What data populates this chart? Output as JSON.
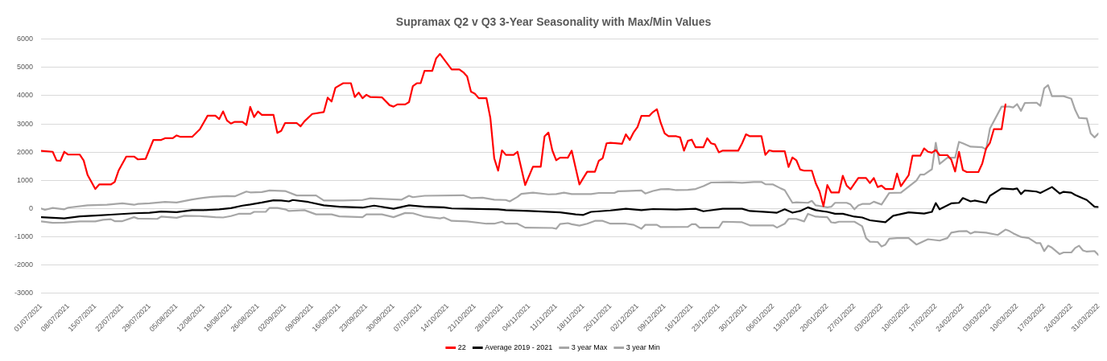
{
  "chart_data": {
    "type": "line",
    "title": "Supramax Q2 v Q3 3-Year Seasonality with Max/Min Values",
    "legend": "bottom",
    "grid": "y",
    "marker": "none",
    "line_style": "solid",
    "ylim": [
      -3000,
      6000
    ],
    "yticks": [
      -3000,
      -2000,
      -1000,
      0,
      1000,
      2000,
      3000,
      4000,
      5000,
      6000
    ],
    "xlim": [
      "2021-07-01",
      "2022-03-31"
    ],
    "xticks": [
      {
        "value": "2021-07-01",
        "label": "01/07/2021"
      },
      {
        "value": "2021-07-08",
        "label": "08/07/2021"
      },
      {
        "value": "2021-07-15",
        "label": "15/07/2021"
      },
      {
        "value": "2021-07-22",
        "label": "22/07/2021"
      },
      {
        "value": "2021-07-29",
        "label": "29/07/2021"
      },
      {
        "value": "2021-08-05",
        "label": "05/08/2021"
      },
      {
        "value": "2021-08-12",
        "label": "12/08/2021"
      },
      {
        "value": "2021-08-19",
        "label": "19/08/2021"
      },
      {
        "value": "2021-08-26",
        "label": "26/08/2021"
      },
      {
        "value": "2021-09-02",
        "label": "02/09/2021"
      },
      {
        "value": "2021-09-09",
        "label": "09/09/2021"
      },
      {
        "value": "2021-09-16",
        "label": "16/09/2021"
      },
      {
        "value": "2021-09-23",
        "label": "23/09/2021"
      },
      {
        "value": "2021-09-30",
        "label": "30/09/2021"
      },
      {
        "value": "2021-10-07",
        "label": "07/10/2021"
      },
      {
        "value": "2021-10-14",
        "label": "14/10/2021"
      },
      {
        "value": "2021-10-21",
        "label": "21/10/2021"
      },
      {
        "value": "2021-10-28",
        "label": "28/10/2021"
      },
      {
        "value": "2021-11-04",
        "label": "04/11/2021"
      },
      {
        "value": "2021-11-11",
        "label": "11/11/2021"
      },
      {
        "value": "2021-11-18",
        "label": "18/11/2021"
      },
      {
        "value": "2021-11-25",
        "label": "25/11/2021"
      },
      {
        "value": "2021-12-02",
        "label": "02/12/2021"
      },
      {
        "value": "2021-12-09",
        "label": "09/12/2021"
      },
      {
        "value": "2021-12-16",
        "label": "16/12/2021"
      },
      {
        "value": "2021-12-23",
        "label": "23/12/2021"
      },
      {
        "value": "2021-12-30",
        "label": "30/12/2021"
      },
      {
        "value": "2022-01-06",
        "label": "06/01/2022"
      },
      {
        "value": "2022-01-13",
        "label": "13/01/2022"
      },
      {
        "value": "2022-01-20",
        "label": "20/01/2022"
      },
      {
        "value": "2022-01-27",
        "label": "27/01/2022"
      },
      {
        "value": "2022-02-03",
        "label": "03/02/2022"
      },
      {
        "value": "2022-02-10",
        "label": "10/02/2022"
      },
      {
        "value": "2022-02-17",
        "label": "17/02/2022"
      },
      {
        "value": "2022-02-24",
        "label": "24/02/2022"
      },
      {
        "value": "2022-03-03",
        "label": "03/03/2022"
      },
      {
        "value": "2022-03-10",
        "label": "10/03/2022"
      },
      {
        "value": "2022-03-17",
        "label": "17/03/2022"
      },
      {
        "value": "2022-03-24",
        "label": "24/03/2022"
      },
      {
        "value": "2022-03-31",
        "label": "31/03/2022"
      }
    ],
    "series": [
      {
        "name": "22",
        "color": "#ff0000",
        "x": [
          "2021-07-01",
          "2021-07-04",
          "2021-07-05",
          "2021-07-06",
          "2021-07-07",
          "2021-07-08",
          "2021-07-11",
          "2021-07-12",
          "2021-07-13",
          "2021-07-15",
          "2021-07-16",
          "2021-07-19",
          "2021-07-20",
          "2021-07-21",
          "2021-07-23",
          "2021-07-25",
          "2021-07-26",
          "2021-07-28",
          "2021-07-30",
          "2021-08-01",
          "2021-08-02",
          "2021-08-04",
          "2021-08-05",
          "2021-08-06",
          "2021-08-09",
          "2021-08-11",
          "2021-08-13",
          "2021-08-15",
          "2021-08-16",
          "2021-08-17",
          "2021-08-18",
          "2021-08-19",
          "2021-08-20",
          "2021-08-22",
          "2021-08-23",
          "2021-08-24",
          "2021-08-25",
          "2021-08-26",
          "2021-08-27",
          "2021-08-30",
          "2021-08-31",
          "2021-09-01",
          "2021-09-02",
          "2021-09-05",
          "2021-09-06",
          "2021-09-07",
          "2021-09-09",
          "2021-09-12",
          "2021-09-13",
          "2021-09-14",
          "2021-09-15",
          "2021-09-17",
          "2021-09-19",
          "2021-09-20",
          "2021-09-21",
          "2021-09-22",
          "2021-09-23",
          "2021-09-24",
          "2021-09-27",
          "2021-09-29",
          "2021-09-30",
          "2021-10-01",
          "2021-10-03",
          "2021-10-04",
          "2021-10-05",
          "2021-10-06",
          "2021-10-07",
          "2021-10-08",
          "2021-10-10",
          "2021-10-11",
          "2021-10-12",
          "2021-10-15",
          "2021-10-17",
          "2021-10-18",
          "2021-10-19",
          "2021-10-20",
          "2021-10-21",
          "2021-10-22",
          "2021-10-24",
          "2021-10-25",
          "2021-10-26",
          "2021-10-27",
          "2021-10-28",
          "2021-10-29",
          "2021-10-31",
          "2021-11-01",
          "2021-11-03",
          "2021-11-05",
          "2021-11-07",
          "2021-11-08",
          "2021-11-09",
          "2021-11-10",
          "2021-11-11",
          "2021-11-12",
          "2021-11-14",
          "2021-11-15",
          "2021-11-16",
          "2021-11-17",
          "2021-11-18",
          "2021-11-19",
          "2021-11-21",
          "2021-11-22",
          "2021-11-23",
          "2021-11-24",
          "2021-11-25",
          "2021-11-28",
          "2021-11-29",
          "2021-11-30",
          "2021-12-01",
          "2021-12-02",
          "2021-12-03",
          "2021-12-05",
          "2021-12-06",
          "2021-12-07",
          "2021-12-08",
          "2021-12-09",
          "2021-12-10",
          "2021-12-12",
          "2021-12-13",
          "2021-12-14",
          "2021-12-15",
          "2021-12-16",
          "2021-12-17",
          "2021-12-19",
          "2021-12-20",
          "2021-12-21",
          "2021-12-22",
          "2021-12-23",
          "2021-12-24",
          "2021-12-28",
          "2021-12-29",
          "2021-12-30",
          "2021-12-31",
          "2022-01-03",
          "2022-01-04",
          "2022-01-05",
          "2022-01-06",
          "2022-01-09",
          "2022-01-10",
          "2022-01-11",
          "2022-01-12",
          "2022-01-13",
          "2022-01-14",
          "2022-01-16",
          "2022-01-17",
          "2022-01-18",
          "2022-01-19",
          "2022-01-20",
          "2022-01-21",
          "2022-01-23",
          "2022-01-24",
          "2022-01-25",
          "2022-01-26",
          "2022-01-28",
          "2022-01-30",
          "2022-01-31",
          "2022-02-01",
          "2022-02-02",
          "2022-02-03",
          "2022-02-04",
          "2022-02-06",
          "2022-02-07",
          "2022-02-08",
          "2022-02-10",
          "2022-02-11",
          "2022-02-13",
          "2022-02-14",
          "2022-02-15",
          "2022-02-16",
          "2022-02-17",
          "2022-02-18",
          "2022-02-20",
          "2022-02-21",
          "2022-02-22",
          "2022-02-23",
          "2022-02-24",
          "2022-02-25",
          "2022-02-28",
          "2022-03-01",
          "2022-03-02",
          "2022-03-03",
          "2022-03-04",
          "2022-03-06",
          "2022-03-07"
        ],
        "values": [
          2040,
          2010,
          1700,
          1690,
          2010,
          1910,
          1910,
          1700,
          1190,
          690,
          850,
          850,
          940,
          1340,
          1840,
          1840,
          1740,
          1760,
          2430,
          2430,
          2490,
          2490,
          2590,
          2540,
          2540,
          2810,
          3290,
          3290,
          3170,
          3440,
          3120,
          3010,
          3070,
          3070,
          2960,
          3600,
          3240,
          3440,
          3320,
          3320,
          2680,
          2750,
          3030,
          3030,
          2910,
          3090,
          3350,
          3420,
          3930,
          3790,
          4280,
          4440,
          4440,
          3950,
          4110,
          3910,
          4030,
          3950,
          3940,
          3660,
          3610,
          3690,
          3690,
          3770,
          4340,
          4440,
          4440,
          4880,
          4880,
          5320,
          5480,
          4930,
          4930,
          4830,
          4680,
          4140,
          4070,
          3910,
          3910,
          3210,
          1780,
          1340,
          2060,
          1900,
          1900,
          2010,
          830,
          1480,
          1480,
          2560,
          2690,
          2060,
          1710,
          1800,
          1800,
          2050,
          1450,
          850,
          1080,
          1300,
          1300,
          1690,
          1780,
          2310,
          2330,
          2290,
          2630,
          2430,
          2700,
          2890,
          3280,
          3280,
          3420,
          3520,
          3030,
          2660,
          2560,
          2560,
          2520,
          2050,
          2400,
          2440,
          2170,
          2170,
          2490,
          2310,
          2270,
          1990,
          2050,
          2050,
          2310,
          2630,
          2560,
          2560,
          1900,
          2060,
          2030,
          2030,
          1470,
          1810,
          1710,
          1380,
          1340,
          1340,
          900,
          600,
          80,
          830,
          570,
          570,
          1160,
          810,
          680,
          1080,
          1080,
          900,
          1080,
          760,
          810,
          690,
          690,
          1240,
          790,
          1180,
          1870,
          1870,
          2130,
          2010,
          1980,
          2070,
          1890,
          1890,
          1730,
          1310,
          2010,
          1360,
          1290,
          1290,
          1590,
          2130,
          2330,
          2810,
          2810,
          3690
        ]
      },
      {
        "name": "Average 2019 - 2021",
        "color": "#000000",
        "x": [
          "2021-07-01",
          "2021-07-07",
          "2021-07-11",
          "2021-07-15",
          "2021-07-19",
          "2021-07-25",
          "2021-07-29",
          "2021-08-01",
          "2021-08-05",
          "2021-08-09",
          "2021-08-12",
          "2021-08-16",
          "2021-08-19",
          "2021-08-22",
          "2021-08-24",
          "2021-08-27",
          "2021-08-30",
          "2021-09-01",
          "2021-09-03",
          "2021-09-04",
          "2021-09-08",
          "2021-09-12",
          "2021-09-16",
          "2021-09-22",
          "2021-09-25",
          "2021-09-30",
          "2021-10-04",
          "2021-10-08",
          "2021-10-13",
          "2021-10-15",
          "2021-10-19",
          "2021-10-27",
          "2021-10-29",
          "2021-11-04",
          "2021-11-12",
          "2021-11-16",
          "2021-11-18",
          "2021-11-20",
          "2021-11-25",
          "2021-11-29",
          "2021-12-03",
          "2021-12-06",
          "2021-12-12",
          "2021-12-17",
          "2021-12-19",
          "2021-12-24",
          "2021-12-29",
          "2021-12-31",
          "2022-01-05",
          "2022-01-07",
          "2022-01-09",
          "2022-01-11",
          "2022-01-13",
          "2022-01-15",
          "2022-01-17",
          "2022-01-20",
          "2022-01-22",
          "2022-01-24",
          "2022-01-27",
          "2022-01-29",
          "2022-01-31",
          "2022-02-04",
          "2022-02-06",
          "2022-02-10",
          "2022-02-14",
          "2022-02-16",
          "2022-02-17",
          "2022-02-18",
          "2022-02-21",
          "2022-02-23",
          "2022-02-24",
          "2022-02-26",
          "2022-02-27",
          "2022-03-02",
          "2022-03-03",
          "2022-03-06",
          "2022-03-09",
          "2022-03-10",
          "2022-03-11",
          "2022-03-12",
          "2022-03-15",
          "2022-03-16",
          "2022-03-19",
          "2022-03-21",
          "2022-03-22",
          "2022-03-24",
          "2022-03-25",
          "2022-03-28",
          "2022-03-30",
          "2022-03-31"
        ],
        "values": [
          -310,
          -350,
          -280,
          -250,
          -220,
          -170,
          -150,
          -110,
          -130,
          -60,
          -60,
          -30,
          10,
          100,
          140,
          210,
          290,
          280,
          250,
          300,
          230,
          110,
          60,
          30,
          100,
          -10,
          110,
          60,
          40,
          0,
          -10,
          -30,
          -60,
          -90,
          -140,
          -210,
          -230,
          -120,
          -70,
          -10,
          -60,
          -20,
          -40,
          -10,
          -100,
          -10,
          -10,
          -90,
          -130,
          -150,
          -30,
          -150,
          -90,
          40,
          -60,
          -120,
          -190,
          -190,
          -290,
          -320,
          -420,
          -490,
          -260,
          -140,
          -180,
          -120,
          190,
          -30,
          180,
          200,
          370,
          250,
          280,
          200,
          450,
          710,
          680,
          710,
          510,
          640,
          600,
          550,
          760,
          530,
          590,
          560,
          480,
          300,
          60,
          50
        ]
      },
      {
        "name": "3 year Max",
        "color": "#a6a6a6",
        "x": [
          "2021-07-01",
          "2021-07-02",
          "2021-07-04",
          "2021-07-07",
          "2021-07-08",
          "2021-07-13",
          "2021-07-18",
          "2021-07-22",
          "2021-07-25",
          "2021-07-26",
          "2021-07-29",
          "2021-08-02",
          "2021-08-05",
          "2021-08-09",
          "2021-08-11",
          "2021-08-14",
          "2021-08-18",
          "2021-08-20",
          "2021-08-23",
          "2021-08-24",
          "2021-08-27",
          "2021-08-29",
          "2021-09-02",
          "2021-09-05",
          "2021-09-10",
          "2021-09-12",
          "2021-09-17",
          "2021-09-22",
          "2021-09-24",
          "2021-10-02",
          "2021-10-04",
          "2021-10-05",
          "2021-10-08",
          "2021-10-18",
          "2021-10-20",
          "2021-10-23",
          "2021-10-26",
          "2021-10-29",
          "2021-10-30",
          "2021-11-01",
          "2021-11-02",
          "2021-11-05",
          "2021-11-09",
          "2021-11-11",
          "2021-11-13",
          "2021-11-15",
          "2021-11-20",
          "2021-11-22",
          "2021-11-26",
          "2021-11-27",
          "2021-11-29",
          "2021-12-03",
          "2021-12-04",
          "2021-12-06",
          "2021-12-08",
          "2021-12-10",
          "2021-12-12",
          "2021-12-15",
          "2021-12-17",
          "2021-12-19",
          "2021-12-21",
          "2021-12-26",
          "2021-12-29",
          "2022-01-01",
          "2022-01-03",
          "2022-01-04",
          "2022-01-06",
          "2022-01-08",
          "2022-01-09",
          "2022-01-11",
          "2022-01-12",
          "2022-01-15",
          "2022-01-16",
          "2022-01-17",
          "2022-01-20",
          "2022-01-21",
          "2022-01-22",
          "2022-01-25",
          "2022-01-26",
          "2022-01-27",
          "2022-01-28",
          "2022-01-29",
          "2022-01-31",
          "2022-02-01",
          "2022-02-03",
          "2022-02-05",
          "2022-02-08",
          "2022-02-12",
          "2022-02-13",
          "2022-02-14",
          "2022-02-16",
          "2022-02-17",
          "2022-02-18",
          "2022-02-20",
          "2022-02-22",
          "2022-02-23",
          "2022-02-24",
          "2022-02-26",
          "2022-03-01",
          "2022-03-02",
          "2022-03-03",
          "2022-03-06",
          "2022-03-08",
          "2022-03-09",
          "2022-03-10",
          "2022-03-11",
          "2022-03-12",
          "2022-03-15",
          "2022-03-16",
          "2022-03-17",
          "2022-03-18",
          "2022-03-19",
          "2022-03-22",
          "2022-03-24",
          "2022-03-25",
          "2022-03-26",
          "2022-03-28",
          "2022-03-29",
          "2022-03-30",
          "2022-03-31"
        ],
        "values": [
          0,
          -50,
          20,
          -30,
          30,
          110,
          130,
          180,
          130,
          160,
          180,
          230,
          210,
          320,
          360,
          410,
          440,
          430,
          600,
          570,
          580,
          640,
          620,
          460,
          460,
          280,
          280,
          300,
          360,
          310,
          450,
          400,
          450,
          470,
          370,
          380,
          310,
          300,
          250,
          410,
          520,
          560,
          500,
          510,
          560,
          510,
          510,
          550,
          550,
          610,
          620,
          640,
          530,
          620,
          680,
          690,
          650,
          660,
          690,
          790,
          920,
          930,
          910,
          940,
          940,
          860,
          850,
          710,
          650,
          200,
          220,
          200,
          270,
          110,
          40,
          60,
          200,
          200,
          140,
          -30,
          110,
          160,
          160,
          240,
          140,
          550,
          560,
          990,
          1200,
          1200,
          1390,
          2330,
          1580,
          1800,
          1800,
          2360,
          2310,
          2190,
          2170,
          2100,
          2840,
          3610,
          3610,
          3580,
          3700,
          3460,
          3740,
          3750,
          3640,
          4260,
          4370,
          3980,
          3980,
          3890,
          3490,
          3210,
          3190,
          2660,
          2520,
          2660
        ]
      },
      {
        "name": "3 year Min",
        "color": "#a6a6a6",
        "x": [
          "2021-07-01",
          "2021-07-04",
          "2021-07-07",
          "2021-07-11",
          "2021-07-15",
          "2021-07-17",
          "2021-07-19",
          "2021-07-20",
          "2021-07-22",
          "2021-07-25",
          "2021-07-26",
          "2021-07-31",
          "2021-08-01",
          "2021-08-05",
          "2021-08-07",
          "2021-08-11",
          "2021-08-15",
          "2021-08-17",
          "2021-08-19",
          "2021-08-21",
          "2021-08-24",
          "2021-08-25",
          "2021-08-28",
          "2021-08-29",
          "2021-08-31",
          "2021-09-02",
          "2021-09-03",
          "2021-09-07",
          "2021-09-10",
          "2021-09-14",
          "2021-09-16",
          "2021-09-22",
          "2021-09-23",
          "2021-09-27",
          "2021-09-30",
          "2021-10-03",
          "2021-10-05",
          "2021-10-08",
          "2021-10-12",
          "2021-10-13",
          "2021-10-15",
          "2021-10-19",
          "2021-10-24",
          "2021-10-26",
          "2021-10-28",
          "2021-10-29",
          "2021-11-01",
          "2021-11-03",
          "2021-11-10",
          "2021-11-11",
          "2021-11-12",
          "2021-11-14",
          "2021-11-15",
          "2021-11-17",
          "2021-11-19",
          "2021-11-21",
          "2021-11-23",
          "2021-11-25",
          "2021-11-29",
          "2021-12-01",
          "2021-12-03",
          "2021-12-04",
          "2021-12-07",
          "2021-12-08",
          "2021-12-15",
          "2021-12-16",
          "2021-12-17",
          "2021-12-18",
          "2021-12-23",
          "2021-12-24",
          "2021-12-29",
          "2021-12-31",
          "2022-01-06",
          "2022-01-07",
          "2022-01-09",
          "2022-01-10",
          "2022-01-12",
          "2022-01-14",
          "2022-01-15",
          "2022-01-17",
          "2022-01-20",
          "2022-01-21",
          "2022-01-22",
          "2022-01-23",
          "2022-01-27",
          "2022-01-29",
          "2022-01-30",
          "2022-01-31",
          "2022-02-02",
          "2022-02-03",
          "2022-02-04",
          "2022-02-05",
          "2022-02-07",
          "2022-02-10",
          "2022-02-12",
          "2022-02-15",
          "2022-02-18",
          "2022-02-20",
          "2022-02-21",
          "2022-02-23",
          "2022-02-25",
          "2022-02-26",
          "2022-02-27",
          "2022-03-02",
          "2022-03-05",
          "2022-03-07",
          "2022-03-08",
          "2022-03-09",
          "2022-03-11",
          "2022-03-13",
          "2022-03-15",
          "2022-03-16",
          "2022-03-17",
          "2022-03-18",
          "2022-03-19",
          "2022-03-21",
          "2022-03-22",
          "2022-03-24",
          "2022-03-25",
          "2022-03-26",
          "2022-03-27",
          "2022-03-28",
          "2022-03-30",
          "2022-03-31"
        ],
        "values": [
          -460,
          -510,
          -500,
          -460,
          -460,
          -400,
          -380,
          -450,
          -450,
          -310,
          -360,
          -370,
          -290,
          -330,
          -260,
          -270,
          -310,
          -320,
          -270,
          -190,
          -190,
          -120,
          -120,
          20,
          20,
          -30,
          -90,
          -60,
          -210,
          -210,
          -280,
          -310,
          -210,
          -210,
          -310,
          -160,
          -170,
          -290,
          -350,
          -320,
          -440,
          -460,
          -540,
          -540,
          -470,
          -540,
          -540,
          -680,
          -690,
          -720,
          -550,
          -520,
          -560,
          -610,
          -540,
          -440,
          -440,
          -540,
          -540,
          -580,
          -720,
          -580,
          -580,
          -660,
          -650,
          -560,
          -560,
          -680,
          -680,
          -470,
          -490,
          -600,
          -600,
          -680,
          -540,
          -370,
          -370,
          -460,
          -190,
          -290,
          -310,
          -490,
          -510,
          -470,
          -470,
          -630,
          -1050,
          -1180,
          -1190,
          -1350,
          -1280,
          -1070,
          -1050,
          -1050,
          -1280,
          -1090,
          -1140,
          -1050,
          -860,
          -810,
          -800,
          -890,
          -830,
          -860,
          -940,
          -750,
          -800,
          -880,
          -1010,
          -1050,
          -1230,
          -1230,
          -1510,
          -1320,
          -1390,
          -1620,
          -1560,
          -1560,
          -1400,
          -1320,
          -1490,
          -1530,
          -1510,
          -1650
        ]
      }
    ]
  }
}
